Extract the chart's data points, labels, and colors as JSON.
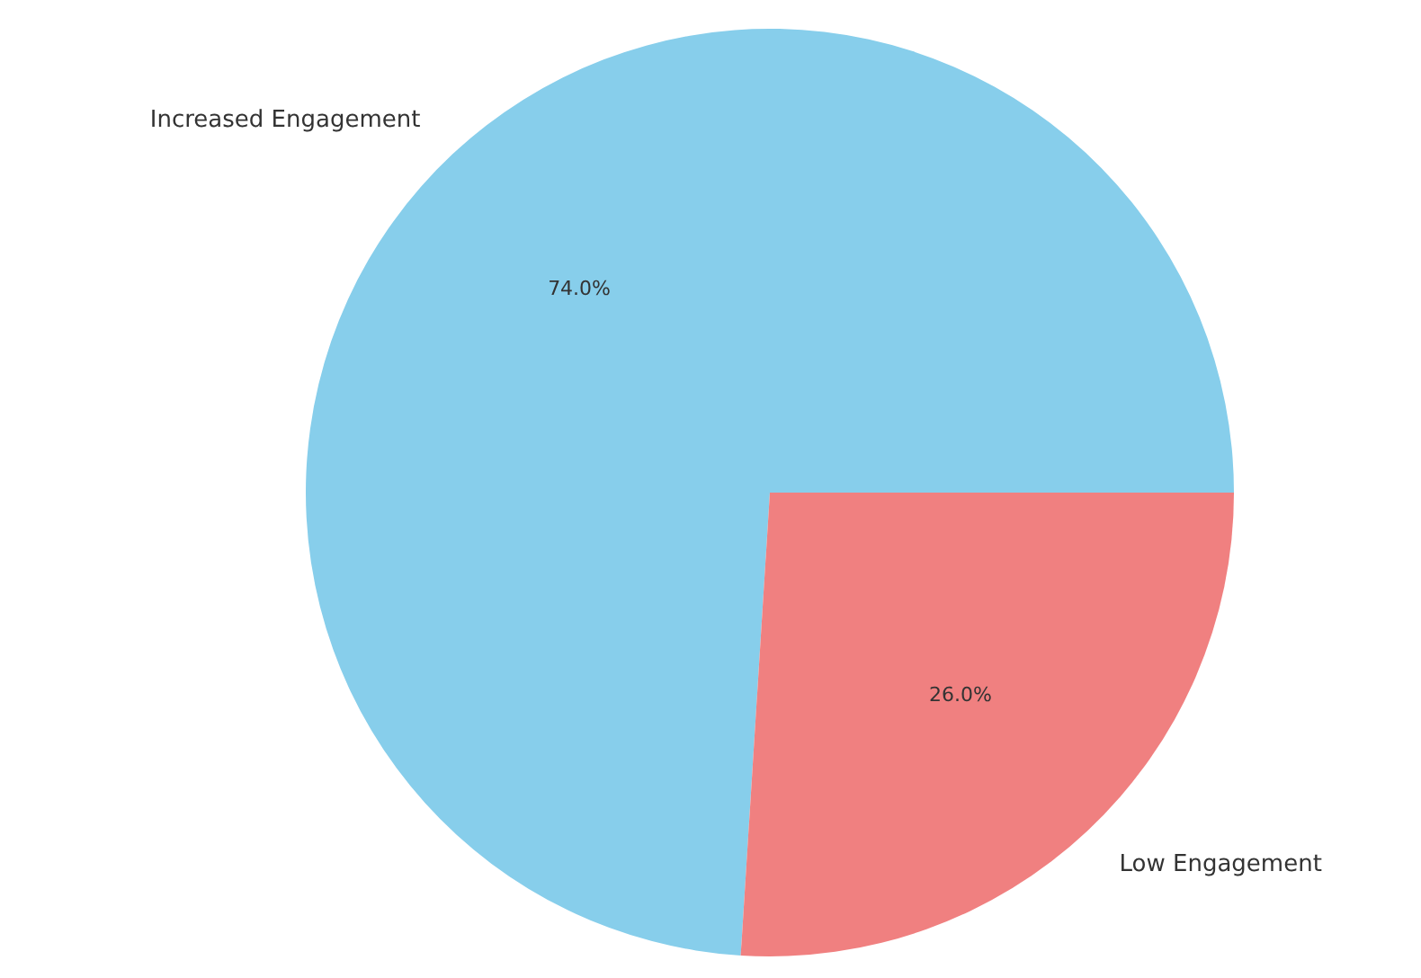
{
  "chart_data": {
    "type": "pie",
    "categories": [
      "Increased Engagement",
      "Low Engagement"
    ],
    "values": [
      74,
      26
    ],
    "colors": [
      "#87ceeb",
      "#f08080"
    ],
    "value_labels": [
      "74.0%",
      "26.0%"
    ]
  }
}
